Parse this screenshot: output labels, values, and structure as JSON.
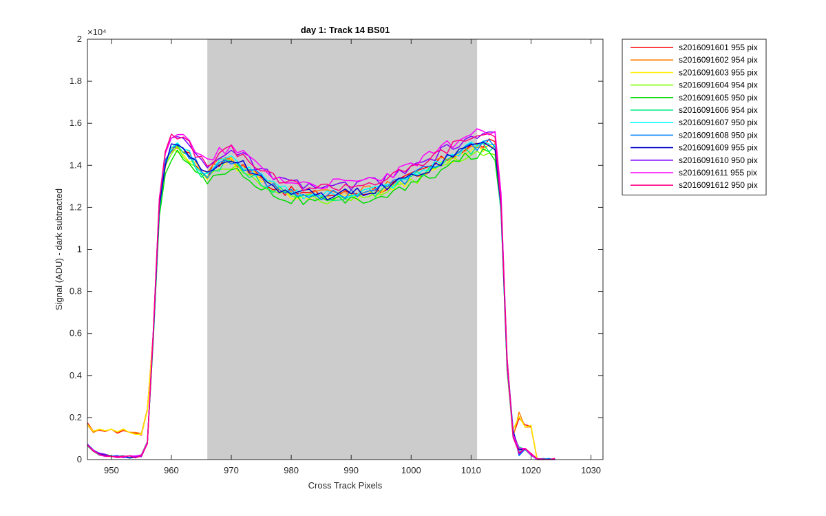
{
  "chart_data": {
    "type": "line",
    "title": "day 1: Track 14  BS01",
    "xlabel": "Cross Track Pixels",
    "ylabel": "Signal (ADU) - dark subtracted",
    "xlim": [
      946,
      1032
    ],
    "ylim": [
      0,
      20000
    ],
    "exponent_label": "×10⁴",
    "xticks": [
      950,
      960,
      970,
      980,
      990,
      1000,
      1010,
      1020,
      1030
    ],
    "xtick_labels": [
      "950",
      "960",
      "970",
      "980",
      "990",
      "1000",
      "1010",
      "1020",
      "1030"
    ],
    "yticks": [
      0,
      2000,
      4000,
      6000,
      8000,
      10000,
      12000,
      14000,
      16000,
      18000,
      20000
    ],
    "ytick_labels": [
      "0",
      "0.2",
      "0.4",
      "0.6",
      "0.8",
      "1",
      "1.2",
      "1.4",
      "1.6",
      "1.8",
      "2"
    ],
    "shaded_region": {
      "x_start": 966,
      "x_end": 1011,
      "color": "#cccccc"
    },
    "legend_position": "outside-top-right",
    "series": [
      {
        "name": "s2016091601 955 pix",
        "color": "#ff0000",
        "base": "bright",
        "amp": 1.0
      },
      {
        "name": "s2016091602 954 pix",
        "color": "#ff8000",
        "base": "bright",
        "amp": 1.0
      },
      {
        "name": "s2016091603 955 pix",
        "color": "#ffee00",
        "base": "bright",
        "amp": 0.99
      },
      {
        "name": "s2016091604 954 pix",
        "color": "#80ff00",
        "base": "dim",
        "amp": 0.98
      },
      {
        "name": "s2016091605 950 pix",
        "color": "#00dd00",
        "base": "dim",
        "amp": 0.97
      },
      {
        "name": "s2016091606 954 pix",
        "color": "#00ee80",
        "base": "dim",
        "amp": 0.99
      },
      {
        "name": "s2016091607 950 pix",
        "color": "#00ffff",
        "base": "dim",
        "amp": 1.0
      },
      {
        "name": "s2016091608 950 pix",
        "color": "#0080ff",
        "base": "dim",
        "amp": 1.0
      },
      {
        "name": "s2016091609 955 pix",
        "color": "#0000cc",
        "base": "dim",
        "amp": 1.0
      },
      {
        "name": "s2016091610 950 pix",
        "color": "#8000ff",
        "base": "dim",
        "amp": 1.03
      },
      {
        "name": "s2016091611 955 pix",
        "color": "#ff00ff",
        "base": "dim",
        "amp": 1.04
      },
      {
        "name": "s2016091612 950 pix",
        "color": "#ff0080",
        "base": "dim",
        "amp": 1.03
      }
    ],
    "profile": {
      "x": [
        946,
        947,
        948,
        949,
        950,
        951,
        952,
        953,
        954,
        955,
        956,
        957,
        958,
        959,
        960,
        961,
        962,
        963,
        964,
        965,
        966,
        967,
        968,
        969,
        970,
        971,
        972,
        973,
        974,
        975,
        976,
        977,
        978,
        979,
        980,
        981,
        982,
        983,
        984,
        985,
        986,
        987,
        988,
        989,
        990,
        991,
        992,
        993,
        994,
        995,
        996,
        997,
        998,
        999,
        1000,
        1001,
        1002,
        1003,
        1004,
        1005,
        1006,
        1007,
        1008,
        1009,
        1010,
        1011,
        1012,
        1013,
        1014,
        1015,
        1016,
        1017,
        1018,
        1019,
        1020,
        1021,
        1022,
        1023,
        1024
      ],
      "bright_edge": [
        1700,
        1300,
        1450,
        1350,
        1400,
        1300,
        1400,
        1300,
        1250,
        1200,
        2400
      ],
      "dim_edge": [
        700,
        400,
        250,
        200,
        150,
        150,
        130,
        130,
        130,
        200,
        800
      ],
      "core": [
        6000,
        12000,
        14200,
        14800,
        15000,
        14800,
        14500,
        14100,
        13800,
        13600,
        13900,
        14100,
        14200,
        14300,
        14100,
        14000,
        13800,
        13600,
        13400,
        13200,
        13000,
        12900,
        12800,
        12750,
        12700,
        12650,
        12650,
        12600,
        12600,
        12600,
        12600,
        12650,
        12650,
        12700,
        12700,
        12750,
        12800,
        12850,
        12900,
        13000,
        13100,
        13200,
        13300,
        13450,
        13600,
        13750,
        13900,
        14050,
        14200,
        14350,
        14500,
        14650,
        14800,
        14900,
        14950,
        15000,
        15050,
        14900,
        12000,
        4500,
        1200
      ],
      "tail_bright": [
        2200,
        1600,
        1600
      ],
      "tail_dim": [
        400,
        500,
        250
      ]
    }
  },
  "legend": {
    "items": [
      "s2016091601 955 pix",
      "s2016091602 954 pix",
      "s2016091603 955 pix",
      "s2016091604 954 pix",
      "s2016091605 950 pix",
      "s2016091606 954 pix",
      "s2016091607 950 pix",
      "s2016091608 950 pix",
      "s2016091609 955 pix",
      "s2016091610 950 pix",
      "s2016091611 955 pix",
      "s2016091612 950 pix"
    ]
  }
}
